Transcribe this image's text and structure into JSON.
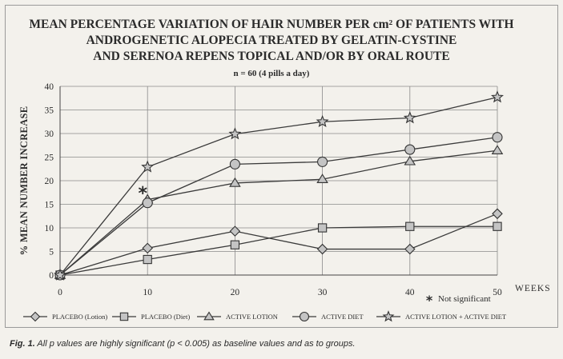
{
  "chart_data": {
    "type": "line",
    "title_lines": [
      "MEAN PERCENTAGE VARIATION OF HAIR NUMBER PER cm² OF PATIENTS WITH",
      "ANDROGENETIC ALOPECIA TREATED BY GELATIN-CYSTINE",
      "AND SERENOA REPENS TOPICAL  AND/OR BY ORAL ROUTE"
    ],
    "subtitle": "n = 60  (4 pills a day)",
    "ylabel": "% MEAN NUMBER INCREASE",
    "xlabel": "WEEKS",
    "x": [
      0,
      10,
      20,
      30,
      40,
      50
    ],
    "xlim": [
      0,
      50
    ],
    "ylim": [
      0,
      40
    ],
    "x_ticks": [
      0,
      10,
      20,
      30,
      40,
      50
    ],
    "y_ticks": [
      0,
      5,
      10,
      15,
      20,
      25,
      30,
      35,
      40
    ],
    "grid": true,
    "legend_position": "bottom",
    "series": [
      {
        "name": "PLACEBO (Lotion)",
        "marker": "diamond",
        "values": [
          0,
          5.7,
          9.3,
          5.5,
          5.5,
          13.0
        ]
      },
      {
        "name": "PLACEBO (Diet)",
        "marker": "square",
        "values": [
          0,
          3.3,
          6.4,
          10.0,
          10.3,
          10.3
        ]
      },
      {
        "name": "ACTIVE LOTION",
        "marker": "triangle",
        "values": [
          0,
          16.0,
          19.5,
          20.3,
          24.1,
          26.4
        ]
      },
      {
        "name": "ACTIVE DIET",
        "marker": "circle",
        "values": [
          0,
          15.3,
          23.5,
          24.0,
          26.6,
          29.2
        ]
      },
      {
        "name": "ACTIVE LOTION + ACTIVE DIET",
        "marker": "star",
        "values": [
          0,
          22.9,
          29.9,
          32.5,
          33.3,
          37.7
        ]
      }
    ],
    "annotations": [
      {
        "text": "Not significant",
        "symbol": "*"
      }
    ],
    "marked_point": {
      "x": 10,
      "y": 17.8,
      "symbol": "*"
    }
  },
  "caption": {
    "label": "Fig. 1.",
    "text": " All p values are highly significant (p < 0.005) as baseline values and as to groups."
  }
}
